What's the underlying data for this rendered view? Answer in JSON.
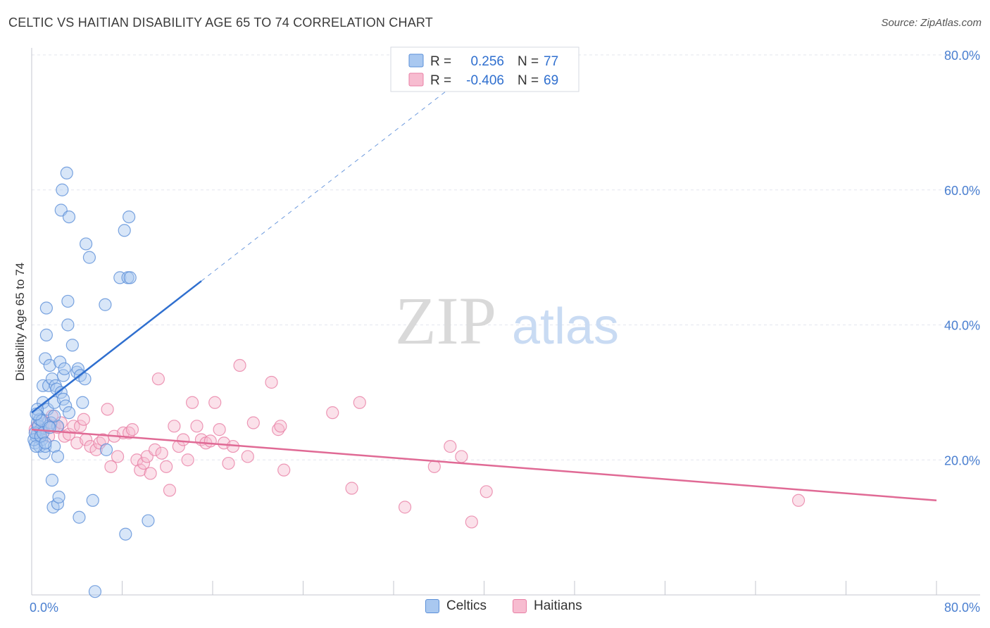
{
  "title": "CELTIC VS HAITIAN DISABILITY AGE 65 TO 74 CORRELATION CHART",
  "source": "Source: ZipAtlas.com",
  "watermark": {
    "zip": "ZIP",
    "atlas": "atlas"
  },
  "colors": {
    "celtic_fill": "#a9c8f0",
    "celtic_stroke": "#5b8fd8",
    "celtic_line": "#2f6fcf",
    "haitian_fill": "#f7bcd0",
    "haitian_stroke": "#e87fa5",
    "haitian_line": "#e06a95",
    "tick": "#4a7fd0",
    "grid": "#e3e6ee"
  },
  "legend_box": {
    "rows": [
      {
        "r_label": "R =",
        "r_value": "0.256",
        "n_label": "N =",
        "n_value": "77"
      },
      {
        "r_label": "R =",
        "r_value": "-0.406",
        "n_label": "N =",
        "n_value": "69"
      }
    ]
  },
  "legend_bottom": {
    "celtic": "Celtics",
    "haitian": "Haitians"
  },
  "chart_data": {
    "type": "scatter",
    "title": "CELTIC VS HAITIAN DISABILITY AGE 65 TO 74 CORRELATION CHART",
    "xlabel": "",
    "ylabel": "Disability Age 65 to 74",
    "xlim": [
      0,
      80
    ],
    "ylim": [
      0,
      80
    ],
    "x_tick_labels": [
      "0.0%",
      "80.0%"
    ],
    "y_ticks": [
      20,
      40,
      60,
      80
    ],
    "y_tick_labels": [
      "20.0%",
      "40.0%",
      "60.0%",
      "80.0%"
    ],
    "series": [
      {
        "name": "Celtics",
        "R": 0.256,
        "N": 77,
        "trend": {
          "x0": 0,
          "y0": 27.0,
          "x1": 15,
          "y1": 46.5,
          "dash_to_x": 38
        },
        "points": [
          [
            0.3,
            22.5
          ],
          [
            0.4,
            23.5
          ],
          [
            0.5,
            24.0
          ],
          [
            0.5,
            25.5
          ],
          [
            0.6,
            26.5
          ],
          [
            0.7,
            22.0
          ],
          [
            0.8,
            24.5
          ],
          [
            0.9,
            23.0
          ],
          [
            1.0,
            31.0
          ],
          [
            1.0,
            28.5
          ],
          [
            1.1,
            21.0
          ],
          [
            1.2,
            22.0
          ],
          [
            1.2,
            35.0
          ],
          [
            1.3,
            42.5
          ],
          [
            1.3,
            38.5
          ],
          [
            1.4,
            27.5
          ],
          [
            1.5,
            31.0
          ],
          [
            1.6,
            34.0
          ],
          [
            1.7,
            25.5
          ],
          [
            1.8,
            32.0
          ],
          [
            1.8,
            17.0
          ],
          [
            1.9,
            13.0
          ],
          [
            2.0,
            28.5
          ],
          [
            2.0,
            22.0
          ],
          [
            2.1,
            31.0
          ],
          [
            2.2,
            30.5
          ],
          [
            2.3,
            25.0
          ],
          [
            2.3,
            13.5
          ],
          [
            2.3,
            20.5
          ],
          [
            2.4,
            14.5
          ],
          [
            2.5,
            34.5
          ],
          [
            2.6,
            57.0
          ],
          [
            2.6,
            30.0
          ],
          [
            2.7,
            60.0
          ],
          [
            2.8,
            29.0
          ],
          [
            2.8,
            32.5
          ],
          [
            2.9,
            33.5
          ],
          [
            3.0,
            28.0
          ],
          [
            3.1,
            62.5
          ],
          [
            3.2,
            43.5
          ],
          [
            3.2,
            40.0
          ],
          [
            3.3,
            56.0
          ],
          [
            3.3,
            27.0
          ],
          [
            3.6,
            37.0
          ],
          [
            4.0,
            33.0
          ],
          [
            4.1,
            33.5
          ],
          [
            4.2,
            11.5
          ],
          [
            4.3,
            32.5
          ],
          [
            4.5,
            28.5
          ],
          [
            4.7,
            32.0
          ],
          [
            4.8,
            52.0
          ],
          [
            5.1,
            50.0
          ],
          [
            5.4,
            14.0
          ],
          [
            5.6,
            0.5
          ],
          [
            6.5,
            43.0
          ],
          [
            6.6,
            21.5
          ],
          [
            7.8,
            47.0
          ],
          [
            8.2,
            54.0
          ],
          [
            8.3,
            9.0
          ],
          [
            8.5,
            47.0
          ],
          [
            8.7,
            47.0
          ],
          [
            8.6,
            56.0
          ],
          [
            10.3,
            11.0
          ],
          [
            0.2,
            23.0
          ],
          [
            0.3,
            24.0
          ],
          [
            0.4,
            22.0
          ],
          [
            0.6,
            25.0
          ],
          [
            0.7,
            26.0
          ],
          [
            0.8,
            23.5
          ],
          [
            1.0,
            24.0
          ],
          [
            1.5,
            25.0
          ],
          [
            2.0,
            26.5
          ],
          [
            0.5,
            27.5
          ],
          [
            1.2,
            22.5
          ],
          [
            0.9,
            25.8
          ],
          [
            1.6,
            24.8
          ],
          [
            0.4,
            26.8
          ]
        ]
      },
      {
        "name": "Haitians",
        "R": -0.406,
        "N": 69,
        "trend": {
          "x0": 0,
          "y0": 24.5,
          "x1": 80,
          "y1": 14.0
        },
        "points": [
          [
            0.3,
            24.5
          ],
          [
            0.5,
            25.0
          ],
          [
            0.8,
            24.0
          ],
          [
            1.0,
            24.5
          ],
          [
            1.3,
            25.5
          ],
          [
            1.5,
            23.5
          ],
          [
            1.8,
            26.5
          ],
          [
            2.0,
            25.0
          ],
          [
            2.3,
            24.8
          ],
          [
            2.6,
            25.5
          ],
          [
            2.9,
            23.5
          ],
          [
            3.3,
            23.8
          ],
          [
            3.7,
            25.0
          ],
          [
            4.0,
            22.5
          ],
          [
            4.3,
            25.0
          ],
          [
            4.6,
            26.0
          ],
          [
            4.8,
            23.0
          ],
          [
            5.2,
            22.0
          ],
          [
            5.7,
            21.5
          ],
          [
            6.0,
            22.5
          ],
          [
            6.3,
            23.0
          ],
          [
            6.7,
            27.5
          ],
          [
            7.0,
            19.0
          ],
          [
            7.3,
            23.5
          ],
          [
            7.6,
            20.5
          ],
          [
            8.1,
            24.0
          ],
          [
            8.6,
            24.0
          ],
          [
            8.9,
            24.5
          ],
          [
            9.3,
            20.0
          ],
          [
            9.6,
            18.5
          ],
          [
            9.9,
            19.5
          ],
          [
            10.2,
            20.5
          ],
          [
            10.5,
            18.0
          ],
          [
            10.9,
            21.5
          ],
          [
            11.2,
            32.0
          ],
          [
            11.5,
            21.0
          ],
          [
            11.9,
            19.0
          ],
          [
            12.2,
            15.5
          ],
          [
            12.6,
            25.0
          ],
          [
            13.0,
            22.0
          ],
          [
            13.4,
            23.0
          ],
          [
            13.8,
            20.0
          ],
          [
            14.2,
            28.5
          ],
          [
            14.6,
            25.0
          ],
          [
            15.0,
            23.0
          ],
          [
            15.4,
            22.5
          ],
          [
            15.8,
            22.8
          ],
          [
            16.2,
            28.5
          ],
          [
            16.6,
            24.5
          ],
          [
            17.0,
            22.5
          ],
          [
            17.4,
            19.5
          ],
          [
            17.8,
            22.0
          ],
          [
            18.4,
            34.0
          ],
          [
            19.1,
            20.5
          ],
          [
            19.6,
            25.5
          ],
          [
            21.2,
            31.5
          ],
          [
            21.8,
            24.5
          ],
          [
            22.3,
            18.5
          ],
          [
            26.6,
            27.0
          ],
          [
            28.3,
            15.8
          ],
          [
            29.0,
            28.5
          ],
          [
            33.0,
            13.0
          ],
          [
            35.6,
            19.0
          ],
          [
            37.0,
            22.0
          ],
          [
            38.0,
            20.5
          ],
          [
            38.9,
            10.8
          ],
          [
            40.2,
            15.3
          ],
          [
            67.8,
            14.0
          ],
          [
            22.0,
            25.0
          ]
        ]
      }
    ]
  }
}
